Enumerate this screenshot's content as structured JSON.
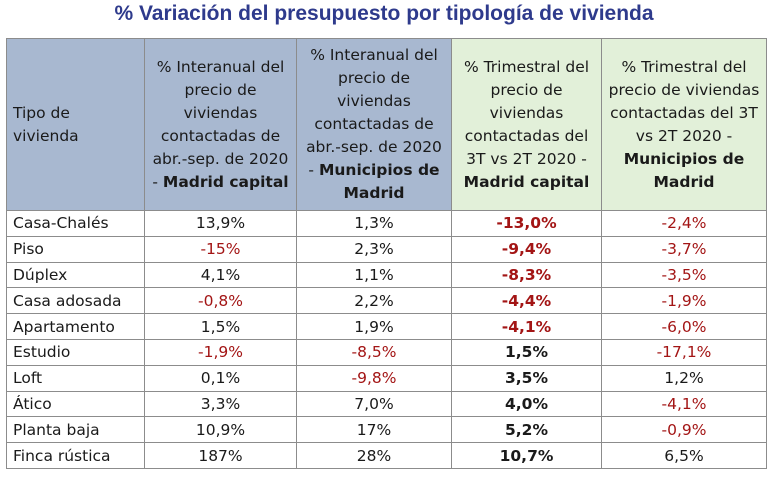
{
  "title": "% Variación del presupuesto por tipología de vivienda",
  "header": {
    "type": "Tipo de vivienda",
    "col1": {
      "text": "% Interanual del precio de viviendas contactadas de abr.-sep. de 2020 - ",
      "bold": "Madrid capital"
    },
    "col2": {
      "text": "% Interanual del precio de viviendas contactadas de abr.-sep. de 2020 - ",
      "bold": "Municipios de Madrid"
    },
    "col3": {
      "text": "% Trimestral del precio de viviendas contactadas del 3T vs 2T 2020 - ",
      "bold": "Madrid capital"
    },
    "col4": {
      "text": "% Trimestral del precio de viviendas contactadas del 3T vs 2T 2020 - ",
      "bold": "Municipios de Madrid"
    }
  },
  "colors": {
    "header_blue": "#a8b8d0",
    "header_green": "#e2f0d9",
    "negative": "#a31515",
    "title": "#2e3a8c"
  },
  "rows": [
    {
      "type": "Casa-Chalés",
      "v1": "13,9%",
      "v2": "1,3%",
      "v3": "-13,0%",
      "v4": "-2,4%"
    },
    {
      "type": "Piso",
      "v1": "-15%",
      "v2": "2,3%",
      "v3": "-9,4%",
      "v4": "-3,7%"
    },
    {
      "type": "Dúplex",
      "v1": "4,1%",
      "v2": "1,1%",
      "v3": "-8,3%",
      "v4": "-3,5%"
    },
    {
      "type": "Casa adosada",
      "v1": "-0,8%",
      "v2": "2,2%",
      "v3": "-4,4%",
      "v4": "-1,9%"
    },
    {
      "type": "Apartamento",
      "v1": "1,5%",
      "v2": "1,9%",
      "v3": "-4,1%",
      "v4": "-6,0%"
    },
    {
      "type": "Estudio",
      "v1": "-1,9%",
      "v2": "-8,5%",
      "v3": "1,5%",
      "v4": "-17,1%"
    },
    {
      "type": "Loft",
      "v1": "0,1%",
      "v2": "-9,8%",
      "v3": "3,5%",
      "v4": "1,2%"
    },
    {
      "type": "Ático",
      "v1": "3,3%",
      "v2": "7,0%",
      "v3": "4,0%",
      "v4": "-4,1%"
    },
    {
      "type": "Planta baja",
      "v1": "10,9%",
      "v2": "17%",
      "v3": "5,2%",
      "v4": "-0,9%"
    },
    {
      "type": "Finca rústica",
      "v1": "187%",
      "v2": "28%",
      "v3": "10,7%",
      "v4": "6,5%"
    }
  ]
}
